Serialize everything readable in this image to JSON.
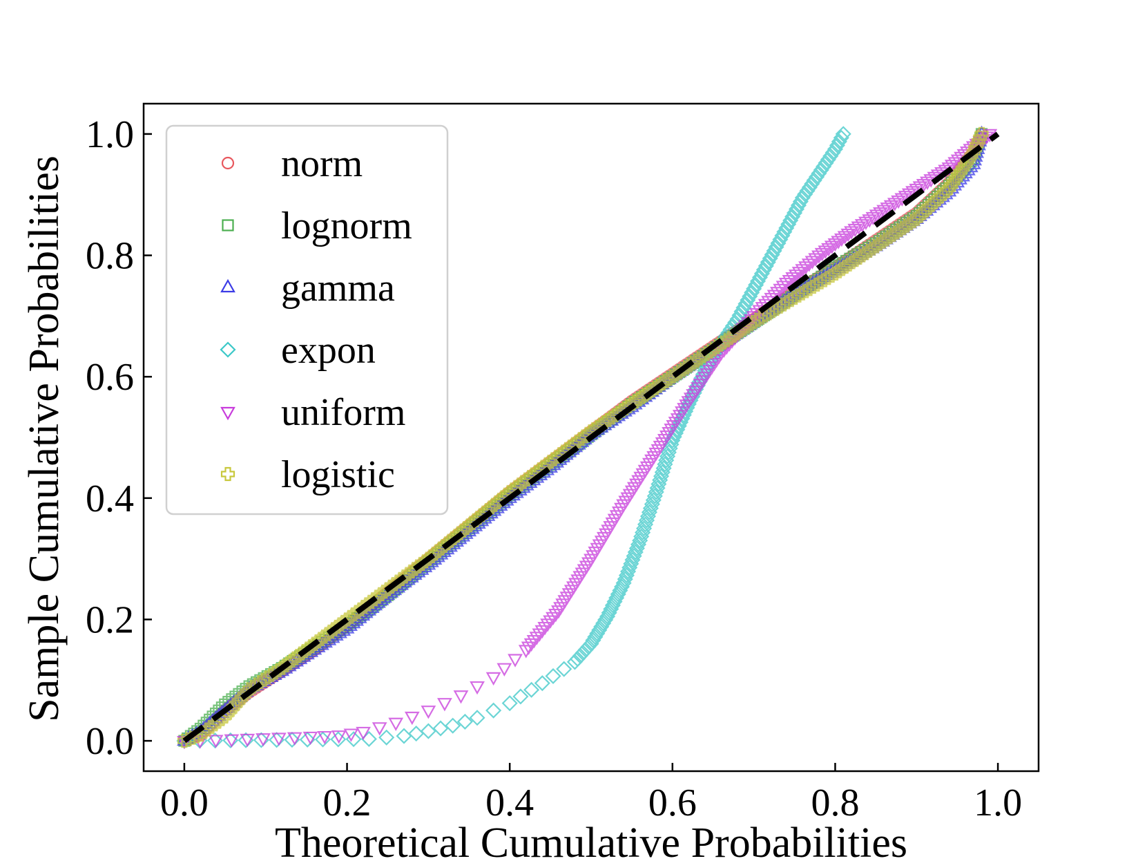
{
  "chart_data": {
    "type": "scatter",
    "title": "",
    "xlabel": "Theoretical Cumulative Probabilities",
    "ylabel": "Sample Cumulative Probabilities",
    "xlim": [
      -0.05,
      1.05
    ],
    "ylim": [
      -0.05,
      1.05
    ],
    "xticks": [
      0.0,
      0.2,
      0.4,
      0.6,
      0.8,
      1.0
    ],
    "yticks": [
      0.0,
      0.2,
      0.4,
      0.6,
      0.8,
      1.0
    ],
    "xtick_labels": [
      "0.0",
      "0.2",
      "0.4",
      "0.6",
      "0.8",
      "1.0"
    ],
    "ytick_labels": [
      "0.0",
      "0.2",
      "0.4",
      "0.6",
      "0.8",
      "1.0"
    ],
    "legend_position": "upper-left",
    "reference_line": {
      "style": "dashed",
      "color": "#000000",
      "x": [
        0.0,
        1.0
      ],
      "y": [
        0.0,
        1.0
      ]
    },
    "series": [
      {
        "name": "norm",
        "marker": "circle",
        "color": "#e8585e",
        "points": [
          [
            0.0,
            0.0
          ],
          [
            0.02,
            0.01
          ],
          [
            0.05,
            0.05
          ],
          [
            0.08,
            0.08
          ],
          [
            0.12,
            0.115
          ],
          [
            0.16,
            0.15
          ],
          [
            0.2,
            0.19
          ],
          [
            0.25,
            0.245
          ],
          [
            0.3,
            0.3
          ],
          [
            0.35,
            0.355
          ],
          [
            0.4,
            0.41
          ],
          [
            0.45,
            0.46
          ],
          [
            0.5,
            0.51
          ],
          [
            0.55,
            0.56
          ],
          [
            0.6,
            0.605
          ],
          [
            0.65,
            0.65
          ],
          [
            0.7,
            0.695
          ],
          [
            0.75,
            0.74
          ],
          [
            0.8,
            0.78
          ],
          [
            0.85,
            0.825
          ],
          [
            0.9,
            0.87
          ],
          [
            0.94,
            0.92
          ],
          [
            0.97,
            0.97
          ],
          [
            0.98,
            1.0
          ]
        ]
      },
      {
        "name": "lognorm",
        "marker": "square",
        "color": "#4caf50",
        "points": [
          [
            0.0,
            0.0
          ],
          [
            0.02,
            0.02
          ],
          [
            0.05,
            0.06
          ],
          [
            0.08,
            0.09
          ],
          [
            0.12,
            0.12
          ],
          [
            0.16,
            0.155
          ],
          [
            0.2,
            0.19
          ],
          [
            0.25,
            0.24
          ],
          [
            0.3,
            0.295
          ],
          [
            0.35,
            0.35
          ],
          [
            0.4,
            0.405
          ],
          [
            0.45,
            0.455
          ],
          [
            0.5,
            0.505
          ],
          [
            0.55,
            0.555
          ],
          [
            0.6,
            0.6
          ],
          [
            0.65,
            0.645
          ],
          [
            0.7,
            0.69
          ],
          [
            0.75,
            0.735
          ],
          [
            0.8,
            0.78
          ],
          [
            0.85,
            0.82
          ],
          [
            0.9,
            0.865
          ],
          [
            0.94,
            0.915
          ],
          [
            0.97,
            0.96
          ],
          [
            0.98,
            1.0
          ]
        ]
      },
      {
        "name": "gamma",
        "marker": "triangle-up",
        "color": "#3c3ce6",
        "points": [
          [
            0.0,
            0.0
          ],
          [
            0.02,
            0.015
          ],
          [
            0.05,
            0.05
          ],
          [
            0.08,
            0.085
          ],
          [
            0.12,
            0.115
          ],
          [
            0.16,
            0.15
          ],
          [
            0.2,
            0.185
          ],
          [
            0.25,
            0.24
          ],
          [
            0.3,
            0.29
          ],
          [
            0.35,
            0.345
          ],
          [
            0.4,
            0.4
          ],
          [
            0.45,
            0.45
          ],
          [
            0.5,
            0.505
          ],
          [
            0.55,
            0.55
          ],
          [
            0.6,
            0.6
          ],
          [
            0.65,
            0.645
          ],
          [
            0.7,
            0.69
          ],
          [
            0.75,
            0.735
          ],
          [
            0.8,
            0.775
          ],
          [
            0.85,
            0.815
          ],
          [
            0.9,
            0.86
          ],
          [
            0.94,
            0.905
          ],
          [
            0.97,
            0.95
          ],
          [
            0.98,
            1.0
          ]
        ]
      },
      {
        "name": "expon",
        "marker": "diamond",
        "color": "#3cc8c8",
        "points": [
          [
            0.0,
            0.0
          ],
          [
            0.227,
            0.003
          ],
          [
            0.27,
            0.008
          ],
          [
            0.3,
            0.016
          ],
          [
            0.33,
            0.025
          ],
          [
            0.36,
            0.038
          ],
          [
            0.4,
            0.062
          ],
          [
            0.44,
            0.095
          ],
          [
            0.48,
            0.13
          ],
          [
            0.5,
            0.16
          ],
          [
            0.52,
            0.205
          ],
          [
            0.54,
            0.26
          ],
          [
            0.56,
            0.33
          ],
          [
            0.58,
            0.41
          ],
          [
            0.6,
            0.495
          ],
          [
            0.62,
            0.555
          ],
          [
            0.64,
            0.61
          ],
          [
            0.66,
            0.655
          ],
          [
            0.68,
            0.695
          ],
          [
            0.7,
            0.745
          ],
          [
            0.72,
            0.795
          ],
          [
            0.74,
            0.845
          ],
          [
            0.76,
            0.895
          ],
          [
            0.78,
            0.935
          ],
          [
            0.8,
            0.975
          ],
          [
            0.81,
            1.0
          ]
        ]
      },
      {
        "name": "uniform",
        "marker": "triangle-down",
        "color": "#c83cdc",
        "points": [
          [
            0.0,
            0.0
          ],
          [
            0.155,
            0.007
          ],
          [
            0.19,
            0.009
          ],
          [
            0.22,
            0.015
          ],
          [
            0.26,
            0.03
          ],
          [
            0.3,
            0.05
          ],
          [
            0.34,
            0.075
          ],
          [
            0.38,
            0.105
          ],
          [
            0.42,
            0.15
          ],
          [
            0.46,
            0.215
          ],
          [
            0.5,
            0.3
          ],
          [
            0.54,
            0.39
          ],
          [
            0.58,
            0.475
          ],
          [
            0.62,
            0.56
          ],
          [
            0.66,
            0.64
          ],
          [
            0.7,
            0.7
          ],
          [
            0.74,
            0.755
          ],
          [
            0.78,
            0.8
          ],
          [
            0.82,
            0.84
          ],
          [
            0.86,
            0.875
          ],
          [
            0.9,
            0.91
          ],
          [
            0.94,
            0.945
          ],
          [
            0.97,
            0.98
          ],
          [
            0.99,
            1.0
          ]
        ]
      },
      {
        "name": "logistic",
        "marker": "plus",
        "color": "#c8c83c",
        "points": [
          [
            0.0,
            0.0
          ],
          [
            0.02,
            0.01
          ],
          [
            0.05,
            0.04
          ],
          [
            0.08,
            0.085
          ],
          [
            0.12,
            0.12
          ],
          [
            0.16,
            0.16
          ],
          [
            0.2,
            0.2
          ],
          [
            0.25,
            0.25
          ],
          [
            0.3,
            0.3
          ],
          [
            0.35,
            0.355
          ],
          [
            0.4,
            0.41
          ],
          [
            0.45,
            0.46
          ],
          [
            0.5,
            0.51
          ],
          [
            0.55,
            0.555
          ],
          [
            0.6,
            0.6
          ],
          [
            0.65,
            0.645
          ],
          [
            0.7,
            0.69
          ],
          [
            0.75,
            0.73
          ],
          [
            0.8,
            0.77
          ],
          [
            0.85,
            0.815
          ],
          [
            0.9,
            0.86
          ],
          [
            0.94,
            0.91
          ],
          [
            0.97,
            0.97
          ],
          [
            0.98,
            1.0
          ]
        ]
      }
    ]
  }
}
